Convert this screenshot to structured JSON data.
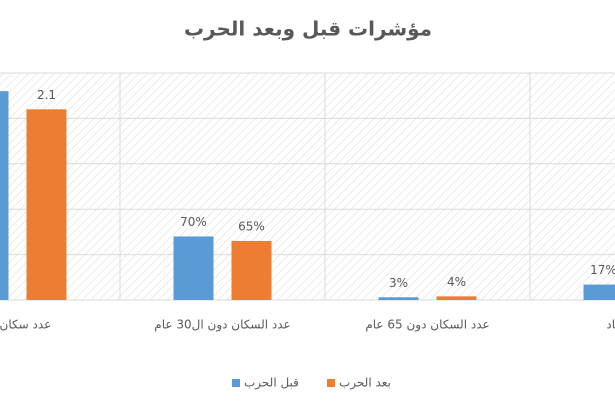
{
  "chart_data": {
    "type": "bar",
    "title": "مؤشرات قبل وبعد الحرب",
    "categories": [
      "عدد سكان ال",
      "عدد السكان دون ال30 عام",
      "عدد السكان دون 65 عام",
      [
        "ي الاقتصاد",
        "ي"
      ]
    ],
    "series": [
      {
        "name": "قبل الحرب",
        "color": "#5b9bd5",
        "values": [
          2.3,
          0.7,
          0.03,
          0.17
        ],
        "value_labels": [
          null,
          "70%",
          "3%",
          "17%"
        ]
      },
      {
        "name": "بعد الحرب",
        "color": "#ed7d31",
        "values": [
          2.1,
          0.65,
          0.04,
          null
        ],
        "value_labels": [
          "2.1",
          "65%",
          "4%",
          null
        ]
      }
    ],
    "ylim": [
      0,
      2.5
    ],
    "yticks": [
      0,
      0.5,
      1,
      1.5,
      2,
      2.5
    ],
    "grid": true
  }
}
